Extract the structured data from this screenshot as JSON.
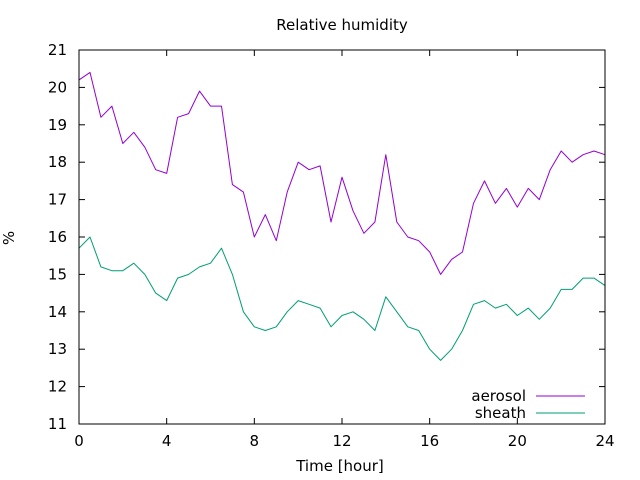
{
  "chart_data": {
    "type": "line",
    "title": "Relative humidity",
    "xlabel": "Time [hour]",
    "ylabel": "%",
    "xlim": [
      0,
      24
    ],
    "ylim": [
      11,
      21
    ],
    "xticks": [
      0,
      4,
      8,
      12,
      16,
      20,
      24
    ],
    "yticks": [
      11,
      12,
      13,
      14,
      15,
      16,
      17,
      18,
      19,
      20,
      21
    ],
    "grid": false,
    "legend_position": "bottom-right",
    "series": [
      {
        "name": "aerosol",
        "color": "#9400d3",
        "x": [
          0,
          0.5,
          1,
          1.5,
          2,
          2.5,
          3,
          3.5,
          4,
          4.5,
          5,
          5.5,
          6,
          6.5,
          7,
          7.5,
          8,
          8.5,
          9,
          9.5,
          10,
          10.5,
          11,
          11.5,
          12,
          12.5,
          13,
          13.5,
          14,
          14.5,
          15,
          15.5,
          16,
          16.5,
          17,
          17.5,
          18,
          18.5,
          19,
          19.5,
          20,
          20.5,
          21,
          21.5,
          22,
          22.5,
          23,
          23.5,
          24
        ],
        "y": [
          20.2,
          20.4,
          19.2,
          19.5,
          18.5,
          18.8,
          18.4,
          17.8,
          17.7,
          19.2,
          19.3,
          19.9,
          19.5,
          19.5,
          17.4,
          17.2,
          16.0,
          16.6,
          15.9,
          17.2,
          18.0,
          17.8,
          17.9,
          16.4,
          17.6,
          16.7,
          16.1,
          16.4,
          18.2,
          16.4,
          16.0,
          15.9,
          15.6,
          15.0,
          15.4,
          15.6,
          16.9,
          17.5,
          16.9,
          17.3,
          16.8,
          17.3,
          17.0,
          17.8,
          18.3,
          18.0,
          18.2,
          18.3,
          18.2
        ]
      },
      {
        "name": "sheath",
        "color": "#009e73",
        "x": [
          0,
          0.5,
          1,
          1.5,
          2,
          2.5,
          3,
          3.5,
          4,
          4.5,
          5,
          5.5,
          6,
          6.5,
          7,
          7.5,
          8,
          8.5,
          9,
          9.5,
          10,
          10.5,
          11,
          11.5,
          12,
          12.5,
          13,
          13.5,
          14,
          14.5,
          15,
          15.5,
          16,
          16.5,
          17,
          17.5,
          18,
          18.5,
          19,
          19.5,
          20,
          20.5,
          21,
          21.5,
          22,
          22.5,
          23,
          23.5,
          24
        ],
        "y": [
          15.7,
          16.0,
          15.2,
          15.1,
          15.1,
          15.3,
          15.0,
          14.5,
          14.3,
          14.9,
          15.0,
          15.2,
          15.3,
          15.7,
          15.0,
          14.0,
          13.6,
          13.5,
          13.6,
          14.0,
          14.3,
          14.2,
          14.1,
          13.6,
          13.9,
          14.0,
          13.8,
          13.5,
          14.4,
          14.0,
          13.6,
          13.5,
          13.0,
          12.7,
          13.0,
          13.5,
          14.2,
          14.3,
          14.1,
          14.2,
          13.9,
          14.1,
          13.8,
          14.1,
          14.6,
          14.6,
          14.9,
          14.9,
          14.7
        ]
      }
    ]
  }
}
